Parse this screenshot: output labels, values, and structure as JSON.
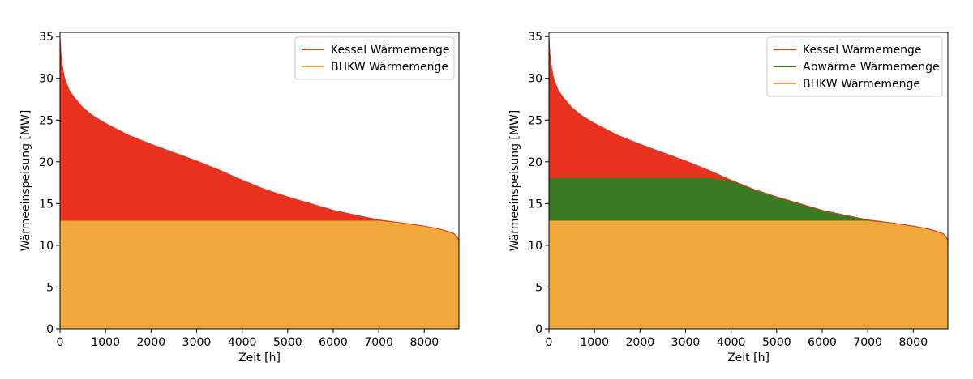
{
  "chart_data": [
    {
      "type": "area",
      "xlabel": "Zeit [h]",
      "ylabel": "Wärmeeinspeisung [MW]",
      "xlim": [
        0,
        8760
      ],
      "ylim": [
        0,
        35.5
      ],
      "xticks": [
        0,
        1000,
        2000,
        3000,
        4000,
        5000,
        6000,
        7000,
        8000
      ],
      "yticks": [
        0,
        5,
        10,
        15,
        20,
        25,
        30,
        35
      ],
      "legend_position": "top-right",
      "x": [
        0,
        20,
        50,
        100,
        200,
        300,
        500,
        700,
        1000,
        1500,
        2000,
        2500,
        3000,
        3500,
        4000,
        4500,
        5000,
        5500,
        6000,
        6500,
        7000,
        7500,
        8000,
        8300,
        8500,
        8650,
        8720,
        8760
      ],
      "load_curve": [
        35.0,
        33.0,
        31.5,
        30.0,
        28.6,
        27.8,
        26.5,
        25.6,
        24.6,
        23.2,
        22.1,
        21.1,
        20.1,
        19.0,
        17.8,
        16.7,
        15.8,
        15.0,
        14.2,
        13.6,
        13.05,
        12.7,
        12.3,
        12.0,
        11.7,
        11.4,
        11.0,
        10.6
      ],
      "series": [
        {
          "name": "Kessel Wärmemenge",
          "color": "#e8321f",
          "role": "top"
        },
        {
          "name": "BHKW Wärmemenge",
          "color": "#f0a83a",
          "role": "base",
          "cap": 13.0
        }
      ]
    },
    {
      "type": "area",
      "xlabel": "Zeit [h]",
      "ylabel": "Wärmeeinspeisung [MW]",
      "xlim": [
        0,
        8760
      ],
      "ylim": [
        0,
        35.5
      ],
      "xticks": [
        0,
        1000,
        2000,
        3000,
        4000,
        5000,
        6000,
        7000,
        8000
      ],
      "yticks": [
        0,
        5,
        10,
        15,
        20,
        25,
        30,
        35
      ],
      "legend_position": "top-right",
      "x": [
        0,
        20,
        50,
        100,
        200,
        300,
        500,
        700,
        1000,
        1500,
        2000,
        2500,
        3000,
        3500,
        4000,
        4500,
        5000,
        5500,
        6000,
        6500,
        7000,
        7500,
        8000,
        8300,
        8500,
        8650,
        8720,
        8760
      ],
      "load_curve": [
        35.0,
        33.0,
        31.5,
        30.0,
        28.6,
        27.8,
        26.5,
        25.6,
        24.6,
        23.2,
        22.1,
        21.1,
        20.1,
        19.0,
        17.8,
        16.7,
        15.8,
        15.0,
        14.2,
        13.6,
        13.05,
        12.7,
        12.3,
        12.0,
        11.7,
        11.4,
        11.0,
        10.6
      ],
      "series": [
        {
          "name": "Kessel Wärmemenge",
          "color": "#e8321f",
          "role": "top"
        },
        {
          "name": "Abwärme Wärmemenge",
          "color": "#3a7a22",
          "role": "middle",
          "cap": 18.1
        },
        {
          "name": "BHKW Wärmemenge",
          "color": "#f0a83a",
          "role": "base",
          "cap": 13.0
        }
      ]
    }
  ]
}
